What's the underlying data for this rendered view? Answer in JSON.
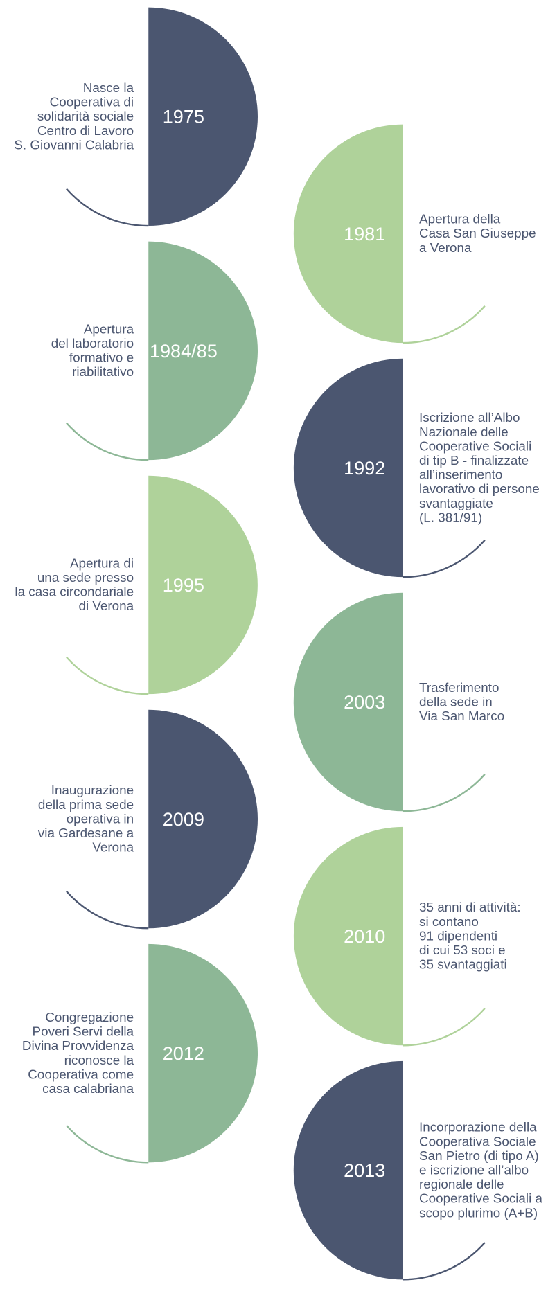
{
  "timeline": {
    "items": [
      {
        "year": "1975",
        "color": "#4b5670",
        "lines": [
          "Nasce la",
          "Cooperativa di",
          "solidarità sociale",
          "Centro di Lavoro",
          "S. Giovanni Calabria"
        ]
      },
      {
        "year": "1981",
        "color": "#afd29a",
        "lines": [
          "Apertura della",
          "Casa San Giuseppe",
          "a Verona"
        ]
      },
      {
        "year": "1984/85",
        "color": "#8db796",
        "lines": [
          "Apertura",
          "del laboratorio",
          "formativo e",
          "riabilitativo"
        ]
      },
      {
        "year": "1992",
        "color": "#4b5670",
        "lines": [
          "Iscrizione all’Albo",
          "Nazionale delle",
          "Cooperative Sociali",
          "di tip B - finalizzate",
          "all’inserimento",
          "lavorativo di persone",
          "svantaggiate",
          "(L. 381/91)"
        ]
      },
      {
        "year": "1995",
        "color": "#afd29a",
        "lines": [
          "Apertura di",
          "una sede presso",
          "la casa circondariale",
          "di Verona"
        ]
      },
      {
        "year": "2003",
        "color": "#8db796",
        "lines": [
          "Trasferimento",
          "della sede in",
          "Via San Marco"
        ]
      },
      {
        "year": "2009",
        "color": "#4b5670",
        "lines": [
          "Inaugurazione",
          "della prima sede",
          "operativa in",
          "via Gardesane a",
          "Verona"
        ]
      },
      {
        "year": "2010",
        "color": "#afd29a",
        "lines": [
          "35 anni di attività:",
          "si contano",
          "91 dipendenti",
          "di cui 53 soci e",
          "35 svantaggiati"
        ]
      },
      {
        "year": "2012",
        "color": "#8db796",
        "lines": [
          "Congregazione",
          "Poveri Servi della",
          "Divina Provvidenza",
          "riconosce la",
          "Cooperativa come",
          "casa calabriana"
        ]
      },
      {
        "year": "2013",
        "color": "#4b5670",
        "lines": [
          "Incorporazione della",
          "Cooperativa Sociale",
          "San Pietro (di tipo A)",
          "e iscrizione all’albo",
          "regionale delle",
          "Cooperative Sociali a",
          "scopo plurimo (A+B)"
        ]
      }
    ]
  }
}
